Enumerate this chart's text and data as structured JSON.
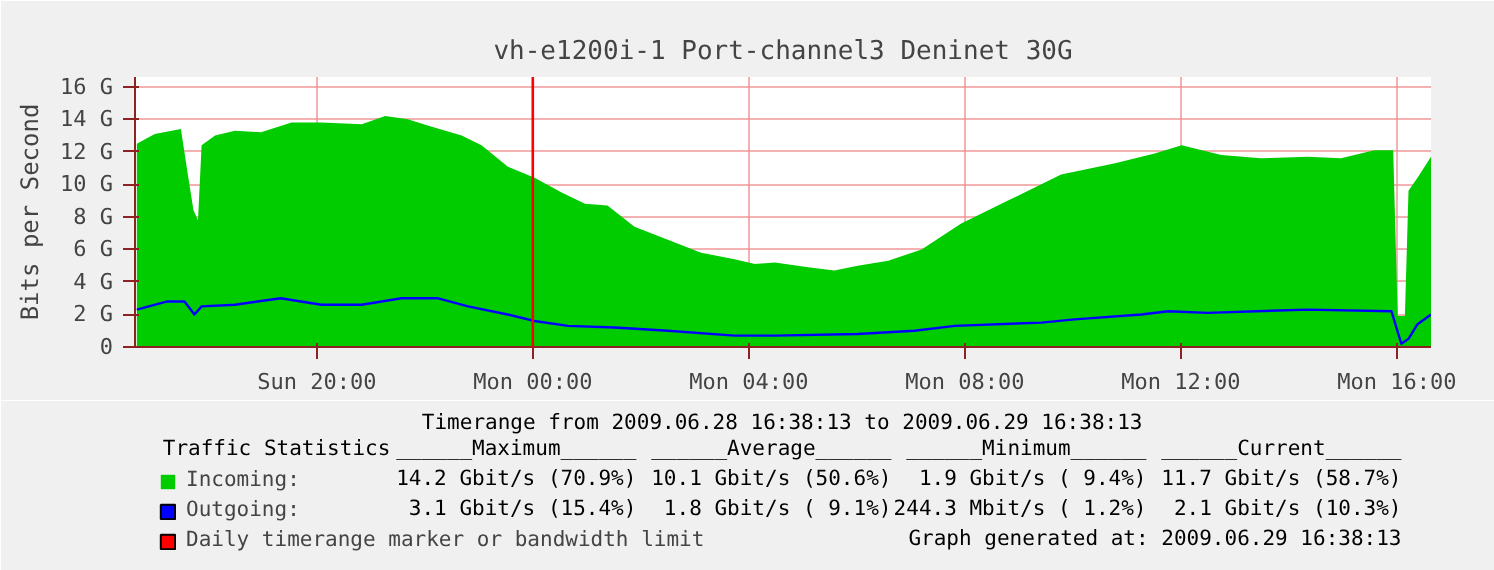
{
  "chart_data": {
    "type": "area",
    "title": "vh-e1200i-1 Port-channel3 Deninet 30G",
    "ylabel": "Bits per Second",
    "series": [
      {
        "name": "Incoming:",
        "color": "#00cc00",
        "x": [
          "2009-06-28T16:40",
          "2009-06-28T17:00",
          "2009-06-28T17:29",
          "2009-06-28T17:37",
          "2009-06-28T17:43",
          "2009-06-28T17:48",
          "2009-06-28T17:52",
          "2009-06-28T18:07",
          "2009-06-28T18:29",
          "2009-06-28T18:58",
          "2009-06-28T19:32",
          "2009-06-28T20:05",
          "2009-06-28T20:50",
          "2009-06-28T21:16",
          "2009-06-28T21:41",
          "2009-06-28T22:04",
          "2009-06-28T22:41",
          "2009-06-28T23:03",
          "2009-06-28T23:32",
          "2009-06-29T00:02",
          "2009-06-29T00:32",
          "2009-06-29T00:58",
          "2009-06-29T01:23",
          "2009-06-29T01:53",
          "2009-06-29T02:30",
          "2009-06-29T03:07",
          "2009-06-29T03:44",
          "2009-06-29T04:07",
          "2009-06-29T04:29",
          "2009-06-29T05:06",
          "2009-06-29T05:35",
          "2009-06-29T06:01",
          "2009-06-29T06:35",
          "2009-06-29T07:12",
          "2009-06-29T07:56",
          "2009-06-29T08:48",
          "2009-06-29T09:47",
          "2009-06-29T10:47",
          "2009-06-29T11:31",
          "2009-06-29T12:01",
          "2009-06-29T12:45",
          "2009-06-29T13:29",
          "2009-06-29T14:21",
          "2009-06-29T14:58",
          "2009-06-29T15:35",
          "2009-06-29T15:56",
          "2009-06-29T16:01",
          "2009-06-29T16:09",
          "2009-06-29T16:13",
          "2009-06-29T16:23",
          "2009-06-29T16:38"
        ],
        "values": [
          12.5,
          13.1,
          13.4,
          10.5,
          8.4,
          7.8,
          12.4,
          13.0,
          13.3,
          13.2,
          13.8,
          13.8,
          13.7,
          14.2,
          14.0,
          13.6,
          13.0,
          12.4,
          11.1,
          10.4,
          9.5,
          8.8,
          8.7,
          7.4,
          6.6,
          5.8,
          5.4,
          5.1,
          5.2,
          4.9,
          4.7,
          5.0,
          5.3,
          6.0,
          7.6,
          9.0,
          10.6,
          11.3,
          11.9,
          12.4,
          11.8,
          11.6,
          11.7,
          11.6,
          12.1,
          12.1,
          1.9,
          1.9,
          9.6,
          10.4,
          11.7
        ]
      },
      {
        "name": "Outgoing:",
        "type": "line",
        "color": "#0000ff",
        "x": [
          "2009-06-28T16:40",
          "2009-06-28T17:14",
          "2009-06-28T17:33",
          "2009-06-28T17:44",
          "2009-06-28T17:52",
          "2009-06-28T18:29",
          "2009-06-28T19:20",
          "2009-06-28T20:05",
          "2009-06-28T20:50",
          "2009-06-28T21:34",
          "2009-06-28T22:14",
          "2009-06-28T22:48",
          "2009-06-28T23:32",
          "2009-06-29T00:02",
          "2009-06-29T00:39",
          "2009-06-29T01:31",
          "2009-06-29T02:30",
          "2009-06-29T03:44",
          "2009-06-29T04:29",
          "2009-06-29T06:01",
          "2009-06-29T07:04",
          "2009-06-29T07:49",
          "2009-06-29T09:25",
          "2009-06-29T10:02",
          "2009-06-29T11:16",
          "2009-06-29T11:46",
          "2009-06-29T12:30",
          "2009-06-29T14:21",
          "2009-06-29T15:54",
          "2009-06-29T16:05",
          "2009-06-29T16:13",
          "2009-06-29T16:23",
          "2009-06-29T16:38"
        ],
        "values": [
          2.3,
          2.8,
          2.8,
          2.0,
          2.5,
          2.6,
          3.0,
          2.6,
          2.6,
          3.0,
          3.0,
          2.5,
          2.0,
          1.6,
          1.3,
          1.2,
          1.0,
          0.7,
          0.7,
          0.8,
          1.0,
          1.3,
          1.5,
          1.7,
          2.0,
          2.2,
          2.1,
          2.3,
          2.2,
          0.2,
          0.5,
          1.4,
          2.0
        ]
      }
    ],
    "xlim": [
      "2009-06-28T16:38",
      "2009-06-29T16:38"
    ],
    "xticks": [
      {
        "value": "2009-06-28T20:00",
        "label": "Sun 20:00"
      },
      {
        "value": "2009-06-29T00:00",
        "label": "Mon 00:00"
      },
      {
        "value": "2009-06-29T04:00",
        "label": "Mon 04:00"
      },
      {
        "value": "2009-06-29T08:00",
        "label": "Mon 08:00"
      },
      {
        "value": "2009-06-29T12:00",
        "label": "Mon 12:00"
      },
      {
        "value": "2009-06-29T16:00",
        "label": "Mon 16:00"
      }
    ],
    "ylim": [
      0,
      16.6
    ],
    "yticks": [
      0,
      {
        "value": 2,
        "label": "2 G"
      },
      {
        "value": 4,
        "label": "4 G"
      },
      {
        "value": 6,
        "label": "6 G"
      },
      {
        "value": 8,
        "label": "8 G"
      },
      {
        "value": 10,
        "label": "10 G"
      },
      {
        "value": 12,
        "label": "12 G"
      },
      {
        "value": 14,
        "label": "14 G"
      },
      {
        "value": 16,
        "label": "16 G"
      }
    ],
    "ref_lines": [
      {
        "axis": "x",
        "value": "2009-06-29T00:00",
        "label": "Daily timerange marker or bandwidth limit",
        "color": "#ff0000"
      }
    ],
    "grid": true,
    "legend": "bottom",
    "annotations": [
      "Timerange from 2009.06.28 16:38:13 to 2009.06.29 16:38:13",
      "Traffic Statistics",
      "______Maximum______",
      "______Average______",
      "______Minimum______",
      "______Current______",
      "14.2 Gbit/s (70.9%)",
      "10.1 Gbit/s (50.6%)",
      "1.9 Gbit/s ( 9.4%)",
      "11.7 Gbit/s (58.7%)",
      "3.1 Gbit/s (15.4%)",
      "1.8 Gbit/s ( 9.1%)",
      "244.3 Mbit/s ( 1.2%)",
      "2.1 Gbit/s (10.3%)",
      "Graph generated at: 2009.06.29 16:38:13"
    ]
  }
}
